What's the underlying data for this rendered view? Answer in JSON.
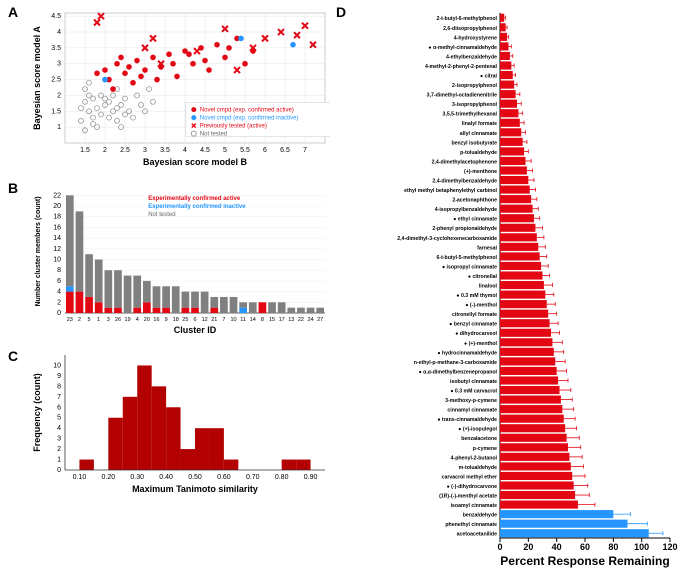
{
  "panelA": {
    "label": "A",
    "xlabel": "Bayesian score model B",
    "ylabel": "Bayesian score model A",
    "xlim": [
      1,
      7.5
    ],
    "ylim": [
      0.5,
      4.6
    ],
    "xticks": [
      1.5,
      2,
      2.5,
      3,
      3.5,
      4,
      4.5,
      5,
      5.5,
      6,
      6.5,
      7
    ],
    "yticks": [
      1,
      1.5,
      2,
      2.5,
      3,
      3.5,
      4,
      4.5
    ],
    "grid_color": "#e5e5e5",
    "background_color": "#ffffff",
    "series": {
      "active": {
        "color": "#e30613",
        "label": "Novel cmpd (exp. confirmed active)",
        "marker": "circle-filled"
      },
      "inactive": {
        "color": "#2596ff",
        "label": "Novel cmpd (exp. confirmed inactive)",
        "marker": "circle-filled"
      },
      "previously": {
        "color": "#e30613",
        "label": "Previously tested (active)",
        "marker": "x"
      },
      "nottested": {
        "color": "#999999",
        "label": "Not tested",
        "marker": "circle-open"
      }
    },
    "points": {
      "nottested": [
        [
          1.4,
          1.2
        ],
        [
          1.5,
          0.9
        ],
        [
          1.6,
          1.5
        ],
        [
          1.7,
          1.1
        ],
        [
          1.8,
          1.6
        ],
        [
          1.5,
          1.8
        ],
        [
          1.6,
          2.0
        ],
        [
          1.7,
          1.3
        ],
        [
          1.9,
          1.4
        ],
        [
          2.0,
          1.7
        ],
        [
          1.4,
          1.6
        ],
        [
          1.8,
          1.0
        ],
        [
          2.1,
          1.3
        ],
        [
          1.9,
          2.0
        ],
        [
          2.2,
          1.5
        ],
        [
          2.0,
          1.9
        ],
        [
          2.3,
          1.2
        ],
        [
          1.5,
          2.2
        ],
        [
          1.7,
          1.9
        ],
        [
          2.4,
          1.0
        ],
        [
          2.1,
          1.8
        ],
        [
          2.3,
          1.6
        ],
        [
          2.5,
          1.4
        ],
        [
          2.2,
          2.0
        ],
        [
          2.4,
          1.7
        ],
        [
          2.6,
          1.5
        ],
        [
          2.3,
          2.2
        ],
        [
          2.5,
          1.9
        ],
        [
          2.7,
          1.3
        ],
        [
          1.6,
          2.4
        ],
        [
          3.0,
          1.5
        ],
        [
          3.2,
          1.8
        ],
        [
          2.8,
          2.0
        ],
        [
          3.1,
          2.2
        ],
        [
          2.9,
          1.7
        ]
      ],
      "active": [
        [
          2.0,
          2.8
        ],
        [
          2.1,
          2.5
        ],
        [
          2.3,
          3.0
        ],
        [
          2.5,
          2.7
        ],
        [
          2.7,
          2.4
        ],
        [
          2.8,
          3.1
        ],
        [
          3.0,
          2.8
        ],
        [
          3.2,
          3.2
        ],
        [
          3.4,
          2.9
        ],
        [
          3.6,
          3.3
        ],
        [
          3.8,
          2.6
        ],
        [
          4.0,
          3.4
        ],
        [
          4.2,
          3.0
        ],
        [
          4.4,
          3.5
        ],
        [
          4.6,
          2.8
        ],
        [
          4.8,
          3.6
        ],
        [
          5.0,
          3.2
        ],
        [
          5.3,
          3.8
        ],
        [
          5.5,
          3.0
        ],
        [
          2.2,
          2.2
        ],
        [
          2.6,
          2.9
        ],
        [
          3.3,
          2.5
        ],
        [
          3.7,
          3.0
        ],
        [
          4.1,
          3.3
        ],
        [
          4.5,
          3.1
        ],
        [
          5.1,
          3.5
        ],
        [
          5.7,
          3.4
        ],
        [
          1.8,
          2.7
        ],
        [
          2.4,
          3.2
        ],
        [
          2.9,
          2.6
        ]
      ],
      "inactive": [
        [
          2.0,
          2.5
        ],
        [
          5.4,
          3.8
        ],
        [
          6.7,
          3.6
        ]
      ],
      "previously": [
        [
          1.8,
          4.3
        ],
        [
          1.9,
          4.5
        ],
        [
          3.0,
          3.5
        ],
        [
          3.2,
          3.8
        ],
        [
          3.4,
          3.0
        ],
        [
          4.3,
          3.4
        ],
        [
          5.0,
          4.1
        ],
        [
          5.3,
          2.8
        ],
        [
          5.7,
          3.5
        ],
        [
          6.0,
          3.8
        ],
        [
          6.4,
          4.0
        ],
        [
          6.8,
          3.9
        ],
        [
          7.2,
          3.6
        ],
        [
          7.0,
          4.2
        ]
      ]
    }
  },
  "panelB": {
    "label": "B",
    "xlabel": "Cluster ID",
    "ylabel": "Number cluster members (count)",
    "ylim": [
      0,
      23
    ],
    "yticks": [
      0,
      2,
      4,
      6,
      8,
      10,
      12,
      14,
      16,
      18,
      20,
      22
    ],
    "legend": {
      "active": {
        "color": "#e30613",
        "label": "Experimentally confirmed active"
      },
      "inactive": {
        "color": "#2596ff",
        "label": "Experimentally confirmed inactive"
      },
      "nottested": {
        "color": "#808080",
        "label": "Not tested"
      }
    },
    "cluster_ids": [
      "23",
      "2",
      "5",
      "1",
      "3",
      "26",
      "19",
      "4",
      "20",
      "16",
      "9",
      "18",
      "25",
      "6",
      "12",
      "21",
      "7",
      "10",
      "11",
      "14",
      "8",
      "15",
      "17",
      "13",
      "22",
      "24",
      "27"
    ],
    "stacks": [
      {
        "active": 4,
        "inactive": 1,
        "nottested": 17
      },
      {
        "active": 4,
        "inactive": 0,
        "nottested": 15
      },
      {
        "active": 3,
        "inactive": 0,
        "nottested": 8
      },
      {
        "active": 2,
        "inactive": 0,
        "nottested": 8
      },
      {
        "active": 1,
        "inactive": 0,
        "nottested": 7
      },
      {
        "active": 1,
        "inactive": 0,
        "nottested": 7
      },
      {
        "active": 0,
        "inactive": 0,
        "nottested": 7
      },
      {
        "active": 1,
        "inactive": 0,
        "nottested": 6
      },
      {
        "active": 2,
        "inactive": 0,
        "nottested": 4
      },
      {
        "active": 1,
        "inactive": 0,
        "nottested": 4
      },
      {
        "active": 1,
        "inactive": 0,
        "nottested": 4
      },
      {
        "active": 0,
        "inactive": 0,
        "nottested": 5
      },
      {
        "active": 1,
        "inactive": 0,
        "nottested": 3
      },
      {
        "active": 1,
        "inactive": 0,
        "nottested": 3
      },
      {
        "active": 0,
        "inactive": 0,
        "nottested": 4
      },
      {
        "active": 1,
        "inactive": 0,
        "nottested": 2
      },
      {
        "active": 0,
        "inactive": 0,
        "nottested": 3
      },
      {
        "active": 0,
        "inactive": 0,
        "nottested": 3
      },
      {
        "active": 0,
        "inactive": 1,
        "nottested": 1
      },
      {
        "active": 0,
        "inactive": 0,
        "nottested": 2
      },
      {
        "active": 2,
        "inactive": 0,
        "nottested": 0
      },
      {
        "active": 0,
        "inactive": 0,
        "nottested": 2
      },
      {
        "active": 0,
        "inactive": 0,
        "nottested": 2
      },
      {
        "active": 0,
        "inactive": 0,
        "nottested": 1
      },
      {
        "active": 0,
        "inactive": 0,
        "nottested": 1
      },
      {
        "active": 0,
        "inactive": 0,
        "nottested": 1
      },
      {
        "active": 0,
        "inactive": 0,
        "nottested": 1
      }
    ]
  },
  "panelC": {
    "label": "C",
    "xlabel": "Maximum Tanimoto similarity",
    "ylabel": "Frequency (count)",
    "xlim": [
      0.05,
      0.95
    ],
    "ylim": [
      0,
      11
    ],
    "xticks": [
      0.1,
      0.2,
      0.3,
      0.4,
      0.5,
      0.6,
      0.7,
      0.8,
      0.9
    ],
    "yticks": [
      0,
      1,
      2,
      3,
      4,
      5,
      6,
      7,
      8,
      9,
      10
    ],
    "bar_color": "#b30000",
    "bins": [
      0.1,
      0.15,
      0.2,
      0.25,
      0.3,
      0.35,
      0.4,
      0.45,
      0.5,
      0.55,
      0.6,
      0.65,
      0.7,
      0.75,
      0.8,
      0.85,
      0.9
    ],
    "counts": [
      1,
      0,
      5,
      7,
      10,
      8,
      6,
      2,
      4,
      4,
      1,
      0,
      0,
      0,
      1,
      1
    ]
  },
  "panelD": {
    "label": "D",
    "xlabel": "Percent Response Remaining",
    "xlim": [
      0,
      120
    ],
    "xticks": [
      0,
      20,
      40,
      60,
      80,
      100,
      120
    ],
    "bar_color_active": "#e30613",
    "bar_color_inactive": "#2596ff",
    "compounds": [
      {
        "name": "2-t-butyl-6-methylphenol",
        "val": 3,
        "err": 1,
        "color": "active",
        "star": false
      },
      {
        "name": "2,6-diisopropylphenol",
        "val": 4,
        "err": 1,
        "color": "active",
        "star": false
      },
      {
        "name": "4-hydroxystyrene",
        "val": 5,
        "err": 1,
        "color": "active",
        "star": false
      },
      {
        "name": "α-methyl-cinnamaldehyde",
        "val": 6,
        "err": 2,
        "color": "active",
        "star": true
      },
      {
        "name": "4-ethylbenzaldehyde",
        "val": 7,
        "err": 2,
        "color": "active",
        "star": false
      },
      {
        "name": "4-methyl-2-phenyl-2-pentenal",
        "val": 8,
        "err": 2,
        "color": "active",
        "star": false
      },
      {
        "name": "citral",
        "val": 9,
        "err": 2,
        "color": "active",
        "star": true
      },
      {
        "name": "2-isopropylphenol",
        "val": 10,
        "err": 2,
        "color": "active",
        "star": false
      },
      {
        "name": "3,7-dimethyl-octadienenitrile",
        "val": 11,
        "err": 3,
        "color": "active",
        "star": false
      },
      {
        "name": "3-isopropylphenol",
        "val": 12,
        "err": 3,
        "color": "active",
        "star": false
      },
      {
        "name": "3,5,5-trimethylhexanal",
        "val": 13,
        "err": 3,
        "color": "active",
        "star": false
      },
      {
        "name": "linalyl formate",
        "val": 14,
        "err": 3,
        "color": "active",
        "star": false
      },
      {
        "name": "allyl cinnamate",
        "val": 15,
        "err": 3,
        "color": "active",
        "star": false
      },
      {
        "name": "benzyl isobutyrate",
        "val": 16,
        "err": 3,
        "color": "active",
        "star": false
      },
      {
        "name": "p-tolualdehyde",
        "val": 17,
        "err": 3,
        "color": "active",
        "star": false
      },
      {
        "name": "2,4-dimethylacetophenone",
        "val": 18,
        "err": 4,
        "color": "active",
        "star": false
      },
      {
        "name": "(+)-menthone",
        "val": 19,
        "err": 4,
        "color": "active",
        "star": false
      },
      {
        "name": "2,4-dimethylbenzaldehyde",
        "val": 20,
        "err": 4,
        "color": "active",
        "star": false
      },
      {
        "name": "ethyl methyl betaphenylethyl carbinol",
        "val": 21,
        "err": 4,
        "color": "active",
        "star": false
      },
      {
        "name": "2-acetonaphthone",
        "val": 22,
        "err": 4,
        "color": "active",
        "star": false
      },
      {
        "name": "4-isopropylbenzaldehyde",
        "val": 23,
        "err": 4,
        "color": "active",
        "star": false
      },
      {
        "name": "ethyl cinnamate",
        "val": 24,
        "err": 4,
        "color": "active",
        "star": true
      },
      {
        "name": "2-phenyl propionaldehyde",
        "val": 25,
        "err": 5,
        "color": "active",
        "star": false
      },
      {
        "name": "2,4-dimethyl-3-cyclohexenecarboxamide",
        "val": 26,
        "err": 5,
        "color": "active",
        "star": false
      },
      {
        "name": "farnesal",
        "val": 27,
        "err": 5,
        "color": "active",
        "star": false
      },
      {
        "name": "6-t-butyl-5-methylphenol",
        "val": 28,
        "err": 5,
        "color": "active",
        "star": false
      },
      {
        "name": "isopropyl cinnamate",
        "val": 29,
        "err": 5,
        "color": "active",
        "star": true
      },
      {
        "name": "citronellal",
        "val": 30,
        "err": 5,
        "color": "active",
        "star": true
      },
      {
        "name": "linalool",
        "val": 31,
        "err": 6,
        "color": "active",
        "star": false
      },
      {
        "name": "0.3 mM thymol",
        "val": 32,
        "err": 6,
        "color": "active",
        "star": true
      },
      {
        "name": "(-)-menthol",
        "val": 33,
        "err": 6,
        "color": "active",
        "star": true
      },
      {
        "name": "citronellyl formate",
        "val": 34,
        "err": 6,
        "color": "active",
        "star": false
      },
      {
        "name": "benzyl cinnamate",
        "val": 35,
        "err": 6,
        "color": "active",
        "star": true
      },
      {
        "name": "dihydrocarveol",
        "val": 36,
        "err": 6,
        "color": "active",
        "star": true
      },
      {
        "name": "(+)-menthol",
        "val": 37,
        "err": 7,
        "color": "active",
        "star": true
      },
      {
        "name": "hydrocinnamaldehyde",
        "val": 38,
        "err": 7,
        "color": "active",
        "star": true
      },
      {
        "name": "n-ethyl-p-methane-3-carboxamide",
        "val": 39,
        "err": 7,
        "color": "active",
        "star": false
      },
      {
        "name": "α,α-dimethylbenzenepropanol",
        "val": 40,
        "err": 7,
        "color": "active",
        "star": true
      },
      {
        "name": "isobutyl cinnamate",
        "val": 41,
        "err": 7,
        "color": "active",
        "star": false
      },
      {
        "name": "0.3 mM carvacrol",
        "val": 42,
        "err": 8,
        "color": "active",
        "star": true
      },
      {
        "name": "3-methoxy-p-cymene",
        "val": 43,
        "err": 8,
        "color": "active",
        "star": false
      },
      {
        "name": "cinnamyl cinnamate",
        "val": 44,
        "err": 8,
        "color": "active",
        "star": false
      },
      {
        "name": "trans-cinnamaldehyde",
        "val": 45,
        "err": 8,
        "color": "active",
        "star": true
      },
      {
        "name": "(+)-isopulegol",
        "val": 46,
        "err": 8,
        "color": "active",
        "star": true
      },
      {
        "name": "benzalacetone",
        "val": 47,
        "err": 9,
        "color": "active",
        "star": false
      },
      {
        "name": "p-cymene",
        "val": 48,
        "err": 9,
        "color": "active",
        "star": false
      },
      {
        "name": "4-phenyl-2-butanol",
        "val": 49,
        "err": 9,
        "color": "active",
        "star": false
      },
      {
        "name": "m-tolualdehyde",
        "val": 50,
        "err": 9,
        "color": "active",
        "star": false
      },
      {
        "name": "carvacrol methyl ether",
        "val": 51,
        "err": 9,
        "color": "active",
        "star": false
      },
      {
        "name": "(-)-dihydrocarvone",
        "val": 52,
        "err": 10,
        "color": "active",
        "star": true
      },
      {
        "name": "(1R)-(-)-menthyl acetate",
        "val": 53,
        "err": 10,
        "color": "active",
        "star": false
      },
      {
        "name": "isoamyl cinnamate",
        "val": 55,
        "err": 12,
        "color": "active",
        "star": false
      },
      {
        "name": "benzaldehyde",
        "val": 80,
        "err": 12,
        "color": "inactive",
        "star": false
      },
      {
        "name": "phenethyl cinnamate",
        "val": 90,
        "err": 14,
        "color": "inactive",
        "star": false
      },
      {
        "name": "acetoacetanilide",
        "val": 105,
        "err": 10,
        "color": "inactive",
        "star": false
      }
    ]
  }
}
